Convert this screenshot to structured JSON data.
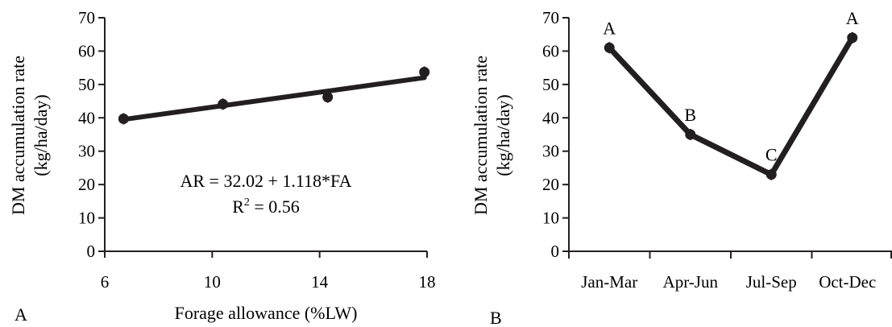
{
  "chart_data": [
    {
      "type": "scatter",
      "panel_label": "A",
      "xlabel": "Forage allowance  (%LW)",
      "ylabel_line1": "DM accumulation rate",
      "ylabel_line2": "(kg/ha/day)",
      "xlim": [
        6,
        18
      ],
      "ylim": [
        0,
        70
      ],
      "xticks": [
        "6",
        "10",
        "14",
        "18"
      ],
      "yticks": [
        "0",
        "10",
        "20",
        "30",
        "40",
        "50",
        "60",
        "70"
      ],
      "points": [
        {
          "x": 6.7,
          "y": 39.7
        },
        {
          "x": 10.4,
          "y": 44.1
        },
        {
          "x": 14.3,
          "y": 46.2
        },
        {
          "x": 17.9,
          "y": 53.7
        }
      ],
      "fit": {
        "intercept": 32.02,
        "slope": 1.118,
        "x_range": [
          6.7,
          17.9
        ]
      },
      "equation": "AR = 32.02 + 1.118*FA",
      "r2_prefix": "R",
      "r2_sup": "2",
      "r2_suffix": " = 0.56"
    },
    {
      "type": "line",
      "panel_label": "B",
      "ylabel_line1": "DM accumulation rate",
      "ylabel_line2": "(kg/ha/day)",
      "categories": [
        "Jan-Mar",
        "Apr-Jun",
        "Jul-Sep",
        "Oct-Dec"
      ],
      "values": [
        61,
        35,
        23,
        64
      ],
      "letters": [
        "A",
        "B",
        "C",
        "A"
      ],
      "ylim": [
        0,
        70
      ],
      "yticks": [
        "0",
        "10",
        "20",
        "30",
        "40",
        "50",
        "60",
        "70"
      ]
    }
  ],
  "colors": {
    "ink": "#231f20"
  }
}
